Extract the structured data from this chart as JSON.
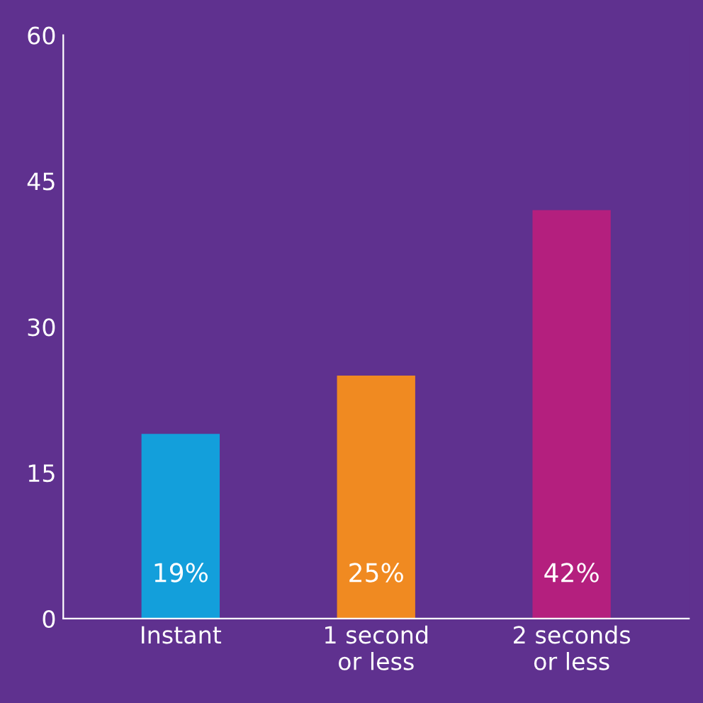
{
  "chart_data": {
    "type": "bar",
    "categories": [
      "Instant",
      "1 second\nor less",
      "2 seconds\nor less"
    ],
    "values": [
      19,
      25,
      42
    ],
    "colors": [
      "#139fdb",
      "#f08a21",
      "#b41f7e"
    ],
    "value_labels": [
      "19%",
      "25%",
      "42%"
    ],
    "ylim": [
      0,
      60
    ],
    "yticks": [
      0,
      15,
      30,
      45,
      60
    ],
    "grid": false
  }
}
